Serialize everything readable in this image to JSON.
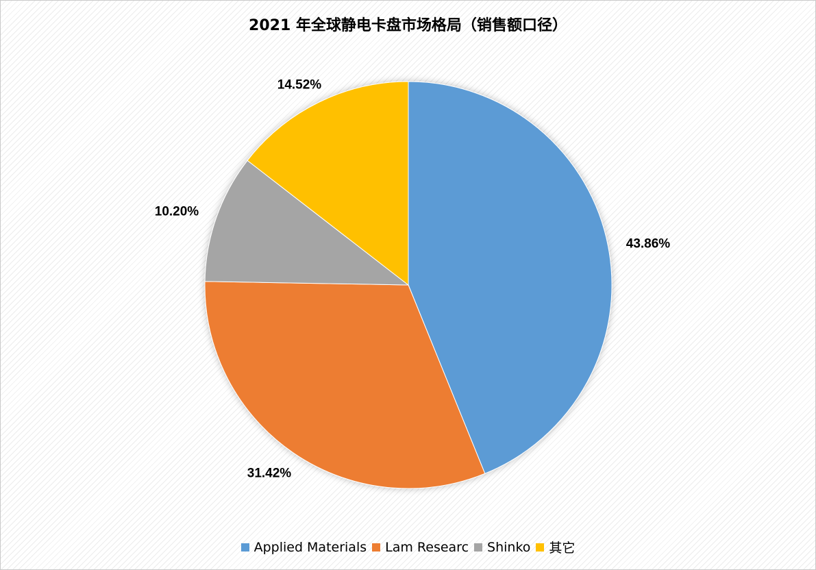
{
  "chart_data": {
    "type": "pie",
    "title": "2021 年全球静电卡盘市场格局（销售额口径）",
    "categories": [
      "Applied Materials",
      "Lam Researc",
      "Shinko",
      "其它"
    ],
    "values": [
      43.86,
      31.42,
      10.2,
      14.52
    ],
    "labels": [
      "43.86%",
      "31.42%",
      "10.20%",
      "14.52%"
    ],
    "colors": [
      "#5b9bd5",
      "#ed7d31",
      "#a5a5a5",
      "#ffc000"
    ],
    "legend": "bottom",
    "start_angle": "12 o'clock",
    "direction": "clockwise"
  }
}
